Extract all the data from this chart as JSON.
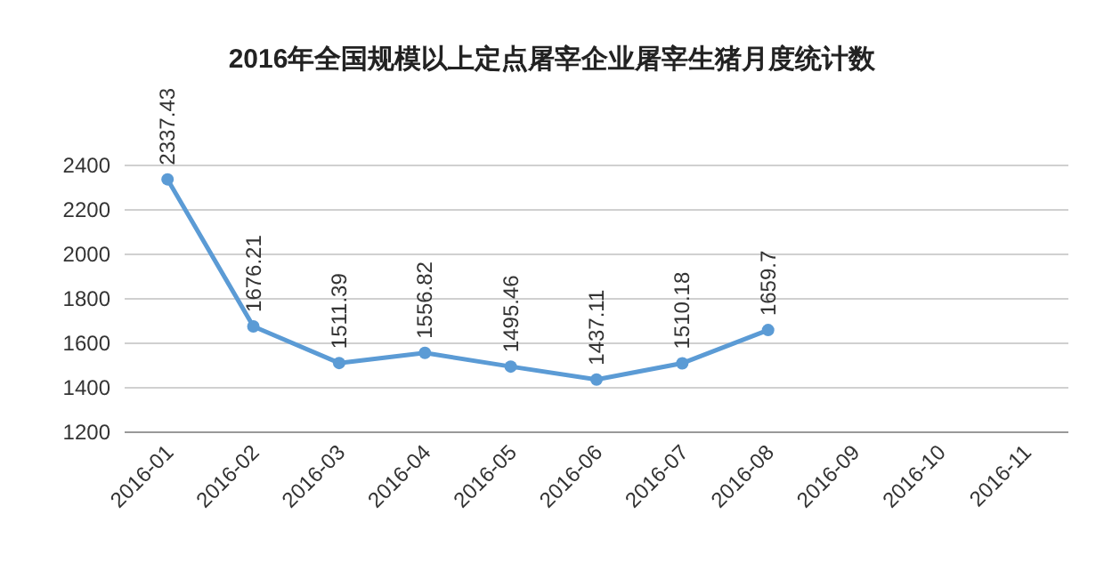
{
  "chart_data": {
    "type": "line",
    "title": "2016年全国规模以上定点屠宰企业屠宰生猪月度统计数",
    "categories": [
      "2016-01",
      "2016-02",
      "2016-03",
      "2016-04",
      "2016-05",
      "2016-06",
      "2016-07",
      "2016-08",
      "2016-09",
      "2016-10",
      "2016-11"
    ],
    "series": [
      {
        "color": "#5b9bd5",
        "values": [
          2337.43,
          1676.21,
          1511.39,
          1556.82,
          1495.46,
          1437.11,
          1510.18,
          1659.7,
          null,
          null,
          null
        ]
      }
    ],
    "ylim": [
      1200,
      2400
    ],
    "yticks": [
      1200,
      1400,
      1600,
      1800,
      2000,
      2200,
      2400
    ],
    "grid": "y",
    "marker": "circle",
    "data_labels": true
  }
}
